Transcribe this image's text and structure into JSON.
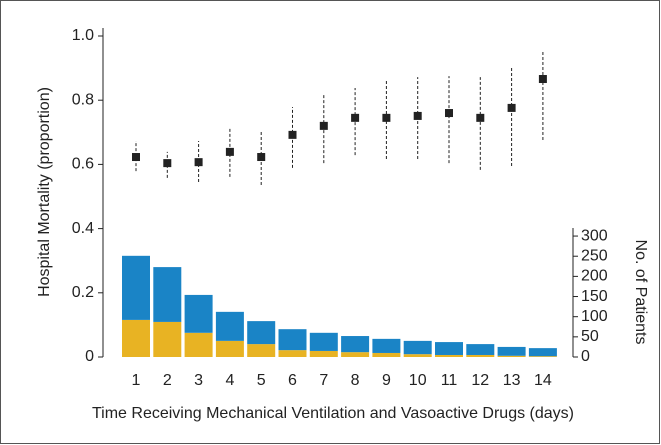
{
  "chart_data": {
    "type": "combo",
    "y_label": "Hospital Mortality (proportion)",
    "y2_label": "No. of Patients",
    "x_label": "Time Receiving Mechanical Ventilation and Vasoactive Drugs (days)",
    "categories": [
      "1",
      "2",
      "3",
      "4",
      "5",
      "6",
      "7",
      "8",
      "9",
      "10",
      "11",
      "12",
      "13",
      "14"
    ],
    "ylim": [
      0,
      1
    ],
    "yticks": [
      0,
      0.2,
      0.4,
      0.6,
      0.8,
      {
        "value": 1,
        "label": "1.0"
      }
    ],
    "y2lim": [
      0,
      320
    ],
    "y2ticks": [
      0,
      50,
      100,
      150,
      200,
      250,
      300
    ],
    "series": [
      {
        "type": "bar",
        "axis": "y2",
        "color": "#e8b323",
        "values": [
          92,
          87,
          60,
          40,
          32,
          17,
          15,
          12,
          10,
          7,
          5,
          5,
          3,
          2
        ]
      },
      {
        "type": "bar",
        "axis": "y2",
        "color": "#1a84c6",
        "values": [
          159,
          136,
          94,
          72,
          57,
          52,
          45,
          40,
          35,
          33,
          32,
          27,
          22,
          20
        ]
      },
      {
        "type": "errorbar",
        "axis": "y",
        "color": "#222222",
        "values": [
          0.623,
          0.604,
          0.607,
          0.639,
          0.623,
          0.692,
          0.72,
          0.745,
          0.745,
          0.751,
          0.76,
          0.745,
          0.776,
          0.866
        ],
        "low": [
          0.579,
          0.558,
          0.545,
          0.561,
          0.536,
          0.589,
          0.604,
          0.629,
          0.617,
          0.617,
          0.604,
          0.583,
          0.595,
          0.676
        ],
        "high": [
          0.673,
          0.639,
          0.673,
          0.713,
          0.704,
          0.779,
          0.816,
          0.838,
          0.86,
          0.872,
          0.875,
          0.872,
          0.903,
          0.95
        ]
      }
    ]
  }
}
